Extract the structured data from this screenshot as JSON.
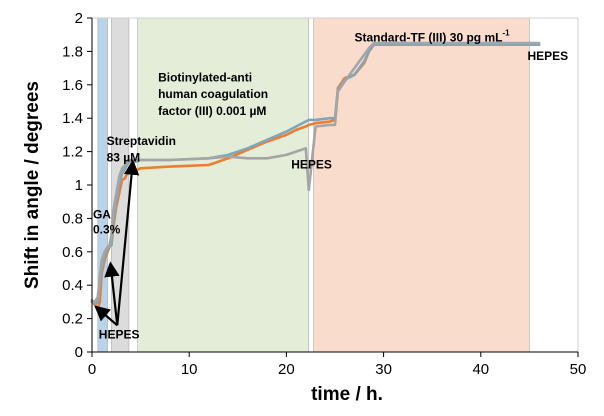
{
  "chart_data": {
    "type": "line",
    "xlabel": "time / h.",
    "ylabel": "Shift in angle / degrees",
    "xlim": [
      0,
      50
    ],
    "ylim": [
      0,
      2
    ],
    "x_ticks": [
      "0",
      "10",
      "20",
      "30",
      "40",
      "50"
    ],
    "y_ticks": [
      "0",
      "0.2",
      "0.4",
      "0.6",
      "0.8",
      "1",
      "1.2",
      "1.4",
      "1.6",
      "1.8",
      "2"
    ],
    "grid": false,
    "legend": "none",
    "shaded_regions": [
      {
        "x0": 0.6,
        "x1": 1.6,
        "color": "#b8d3ea"
      },
      {
        "x0": 2.0,
        "x1": 3.8,
        "color": "#dcdcdc"
      },
      {
        "x0": 4.7,
        "x1": 22.3,
        "color": "#e3edd8"
      },
      {
        "x0": 22.8,
        "x1": 45.0,
        "color": "#fadccc"
      }
    ],
    "annotations": [
      {
        "text": "GA",
        "x": 0.1,
        "y": 0.8
      },
      {
        "text": "0.3%",
        "x": 0.1,
        "y": 0.71
      },
      {
        "text": "Streptavidin",
        "x": 1.5,
        "y": 1.24
      },
      {
        "text": "83 µM",
        "x": 1.5,
        "y": 1.14
      },
      {
        "text": "Biotinylated-anti",
        "x": 6.8,
        "y": 1.62
      },
      {
        "text": "human coagulation",
        "x": 6.8,
        "y": 1.52
      },
      {
        "text": "factor (III) 0.001 µM",
        "x": 6.8,
        "y": 1.42
      },
      {
        "text": "HEPES",
        "x": 20.5,
        "y": 1.1
      },
      {
        "text": "Standard-TF  (III) 30 pg mL",
        "sup": "-1",
        "x": 27.0,
        "y": 1.86
      },
      {
        "text": "HEPES",
        "x": 44.8,
        "y": 1.75
      },
      {
        "text": "HEPES",
        "x": 0.7,
        "y": 0.08
      }
    ],
    "arrows": [
      {
        "from": [
          2.6,
          0.16
        ],
        "to": [
          0.4,
          0.27
        ]
      },
      {
        "from": [
          2.6,
          0.16
        ],
        "to": [
          1.9,
          0.53
        ]
      },
      {
        "from": [
          2.6,
          0.16
        ],
        "to": [
          4.2,
          1.14
        ]
      }
    ],
    "series": [
      {
        "color": "#ed7d31",
        "x": [
          0,
          0.2,
          0.4,
          0.6,
          0.8,
          1.0,
          1.3,
          1.6,
          1.8,
          2.0,
          2.2,
          2.5,
          2.8,
          3.1,
          3.4,
          3.7,
          4.0,
          4.3,
          4.6,
          5,
          8,
          12,
          14,
          16,
          18,
          20,
          21,
          22,
          22.3,
          23,
          24.5,
          25,
          25.3,
          26,
          27,
          28,
          28.5,
          29,
          32,
          35,
          40,
          45,
          46
        ],
        "y": [
          0.31,
          0.29,
          0.28,
          0.26,
          0.3,
          0.47,
          0.55,
          0.6,
          0.63,
          0.64,
          0.75,
          0.87,
          0.95,
          1.03,
          1.04,
          1.08,
          1.08,
          1.09,
          1.09,
          1.1,
          1.11,
          1.12,
          1.16,
          1.21,
          1.26,
          1.3,
          1.33,
          1.35,
          1.36,
          1.37,
          1.38,
          1.39,
          1.58,
          1.64,
          1.66,
          1.73,
          1.8,
          1.84,
          1.84,
          1.84,
          1.84,
          1.84,
          1.84
        ]
      },
      {
        "color": "#80a6ba",
        "x": [
          0,
          0.2,
          0.4,
          0.6,
          0.8,
          1.0,
          1.3,
          1.6,
          1.8,
          2.0,
          2.2,
          2.5,
          2.8,
          3.1,
          3.4,
          3.7,
          4.0,
          4.3,
          4.6,
          5,
          8,
          12,
          14,
          16,
          18,
          20,
          21,
          22,
          22.3,
          23,
          24.5,
          25,
          25.3,
          26,
          27,
          28,
          28.5,
          29,
          32,
          35,
          40,
          45,
          46
        ],
        "y": [
          0.3,
          0.29,
          0.29,
          0.3,
          0.4,
          0.5,
          0.57,
          0.62,
          0.63,
          0.64,
          0.78,
          0.9,
          1.0,
          1.07,
          1.1,
          1.13,
          1.14,
          1.14,
          1.14,
          1.15,
          1.15,
          1.16,
          1.18,
          1.22,
          1.27,
          1.32,
          1.35,
          1.38,
          1.39,
          1.39,
          1.4,
          1.4,
          1.57,
          1.63,
          1.66,
          1.74,
          1.8,
          1.84,
          1.84,
          1.84,
          1.84,
          1.84,
          1.84
        ]
      },
      {
        "color": "#a5a5a5",
        "x": [
          0,
          0.2,
          0.4,
          0.6,
          0.8,
          1.0,
          1.3,
          1.6,
          1.8,
          2.0,
          2.2,
          2.5,
          2.8,
          3.1,
          3.4,
          3.7,
          4.0,
          4.3,
          4.6,
          5,
          8,
          12,
          14,
          16,
          18,
          20,
          21,
          22,
          22.3,
          23,
          24.5,
          25,
          25.3,
          26,
          27,
          28,
          28.5,
          29,
          32,
          35,
          40,
          45,
          46
        ],
        "y": [
          0.3,
          0.3,
          0.31,
          0.33,
          0.45,
          0.55,
          0.6,
          0.63,
          0.64,
          0.7,
          0.85,
          0.95,
          1.05,
          1.1,
          1.12,
          1.14,
          1.15,
          1.15,
          1.15,
          1.15,
          1.15,
          1.16,
          1.17,
          1.16,
          1.16,
          1.18,
          1.2,
          1.22,
          0.97,
          1.35,
          1.36,
          1.36,
          1.56,
          1.62,
          1.7,
          1.78,
          1.82,
          1.85,
          1.85,
          1.85,
          1.85,
          1.85,
          1.85
        ]
      }
    ]
  }
}
